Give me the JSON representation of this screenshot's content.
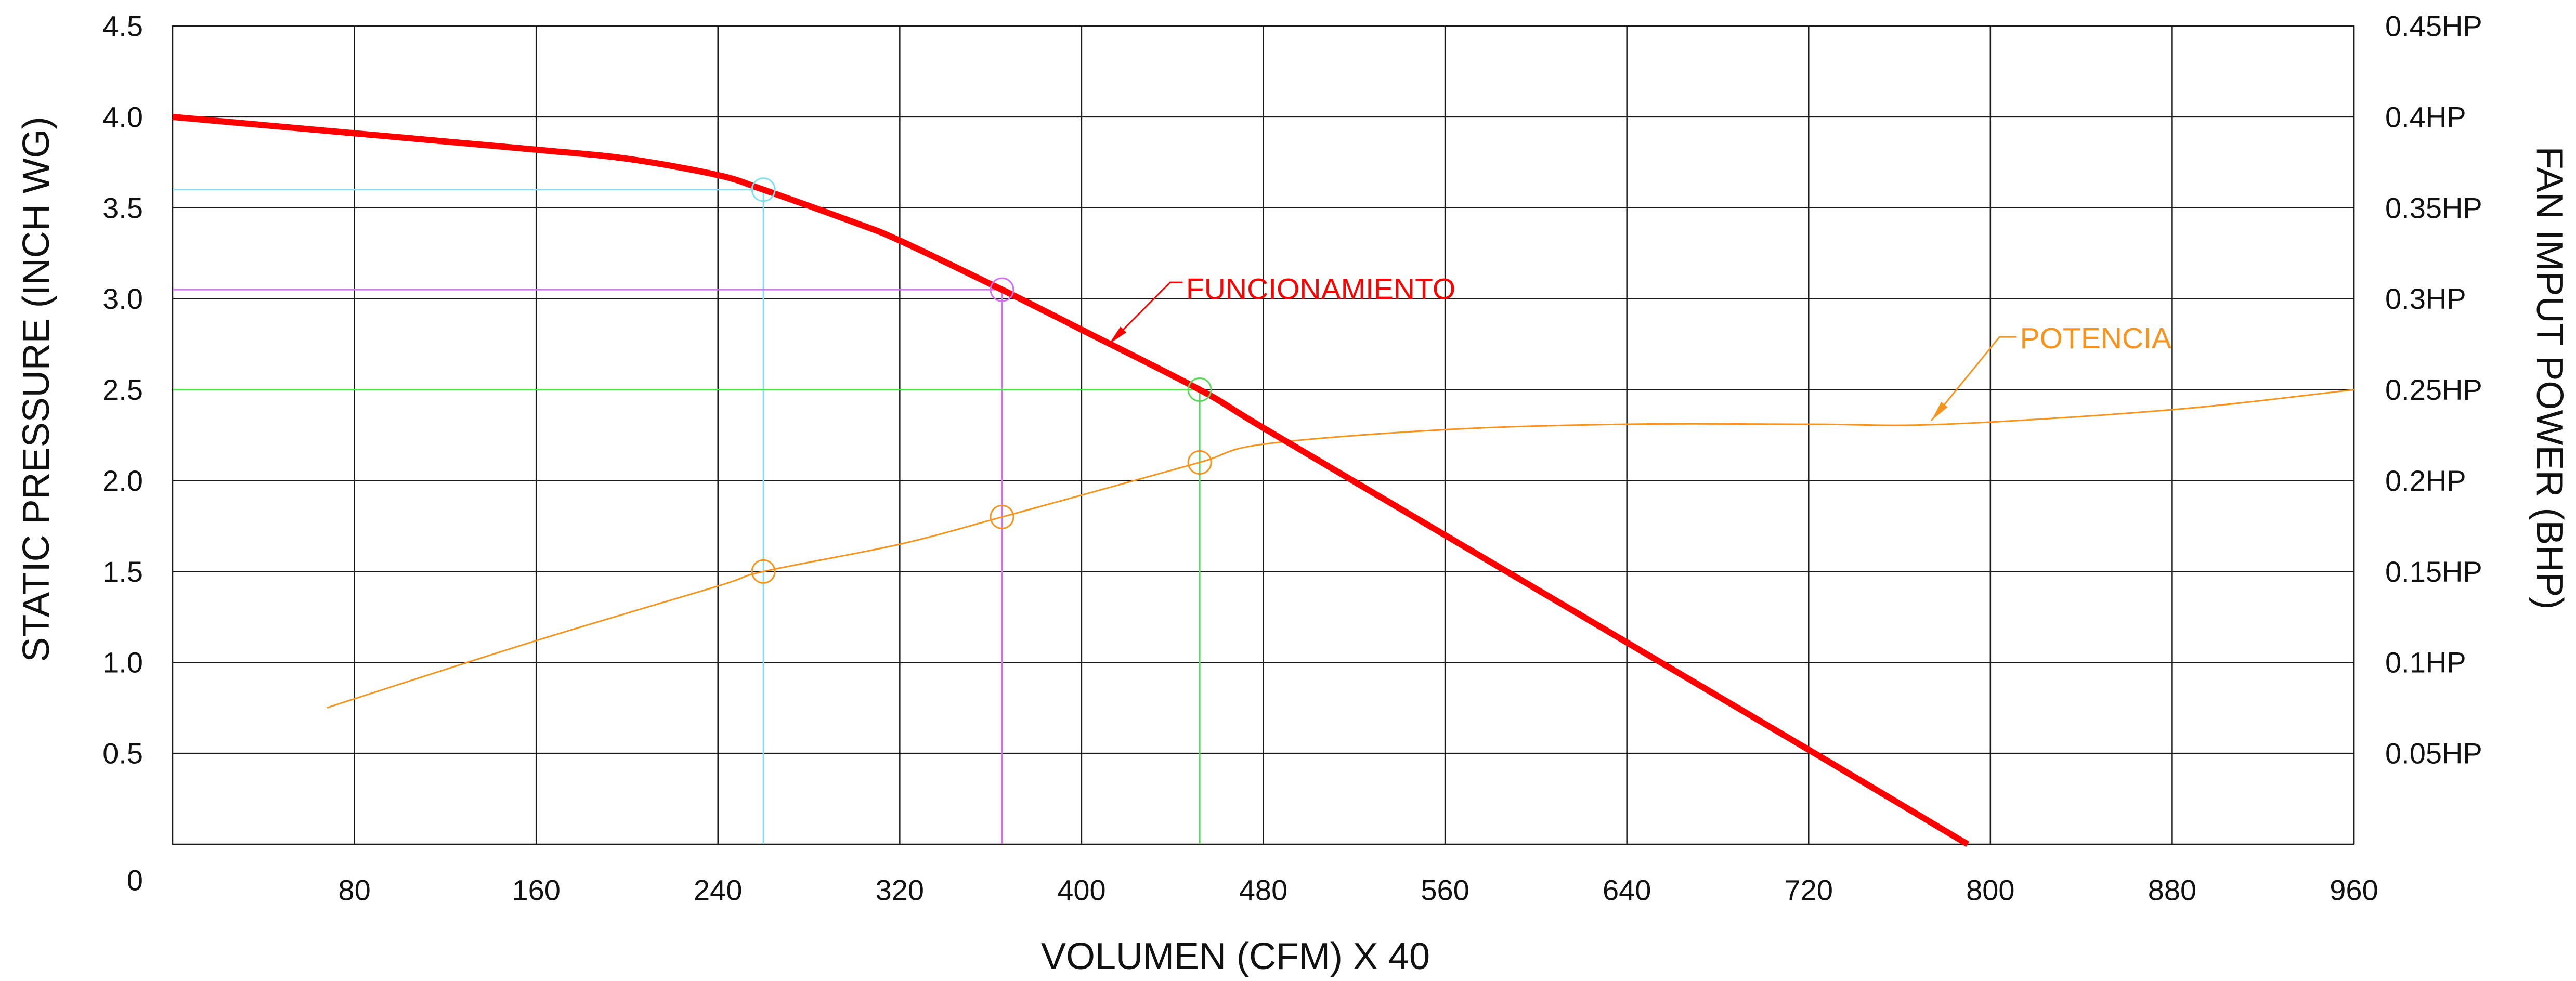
{
  "chart_data": {
    "type": "line",
    "xlabel": "VOLUMEN (CFM) X 40",
    "ylabel": "STATIC PRESSURE (INCH WG)",
    "y2label": "FAN IMPUT POWER (BHP)",
    "xlim": [
      0,
      960
    ],
    "ylim": [
      0,
      4.5
    ],
    "y2lim": [
      0,
      0.45
    ],
    "grid": true,
    "x_ticks": [
      "80",
      "160",
      "240",
      "320",
      "400",
      "480",
      "560",
      "640",
      "720",
      "800",
      "880",
      "960"
    ],
    "y_ticks": [
      "0",
      "0.5",
      "1.0",
      "1.5",
      "2.0",
      "2.5",
      "3.0",
      "3.5",
      "4.0",
      "4.5"
    ],
    "y2_ticks": [
      "0.05HP",
      "0.1HP",
      "0.15HP",
      "0.2HP",
      "0.25HP",
      "0.3HP",
      "0.35HP",
      "0.4HP",
      "0.45HP"
    ],
    "series": [
      {
        "name": "FUNCIONAMIENTO",
        "secondary_axis": false,
        "color": "#ff0000",
        "x": [
          0,
          80,
          160,
          200,
          240,
          260,
          300,
          320,
          365,
          400,
          452,
          480,
          560,
          640,
          720,
          790
        ],
        "y": [
          4.0,
          3.91,
          3.82,
          3.77,
          3.68,
          3.6,
          3.42,
          3.32,
          3.05,
          2.83,
          2.5,
          2.29,
          1.7,
          1.11,
          0.52,
          0
        ]
      },
      {
        "name": "POTENCIA",
        "secondary_axis": true,
        "color": "#f7941d",
        "x": [
          68,
          80,
          160,
          240,
          260,
          320,
          365,
          400,
          452,
          480,
          560,
          640,
          720,
          780,
          880,
          960
        ],
        "y": [
          0.075,
          0.08,
          0.112,
          0.142,
          0.15,
          0.165,
          0.18,
          0.192,
          0.21,
          0.22,
          0.228,
          0.231,
          0.231,
          0.231,
          0.239,
          0.25
        ]
      }
    ],
    "operating_points": [
      {
        "x": 260,
        "pressure": 3.6,
        "power": 0.15,
        "color": "#7fe0f0"
      },
      {
        "x": 365,
        "pressure": 3.05,
        "power": 0.18,
        "color": "#d070f0"
      },
      {
        "x": 452,
        "pressure": 2.5,
        "power": 0.21,
        "color": "#5cd65c"
      }
    ]
  }
}
